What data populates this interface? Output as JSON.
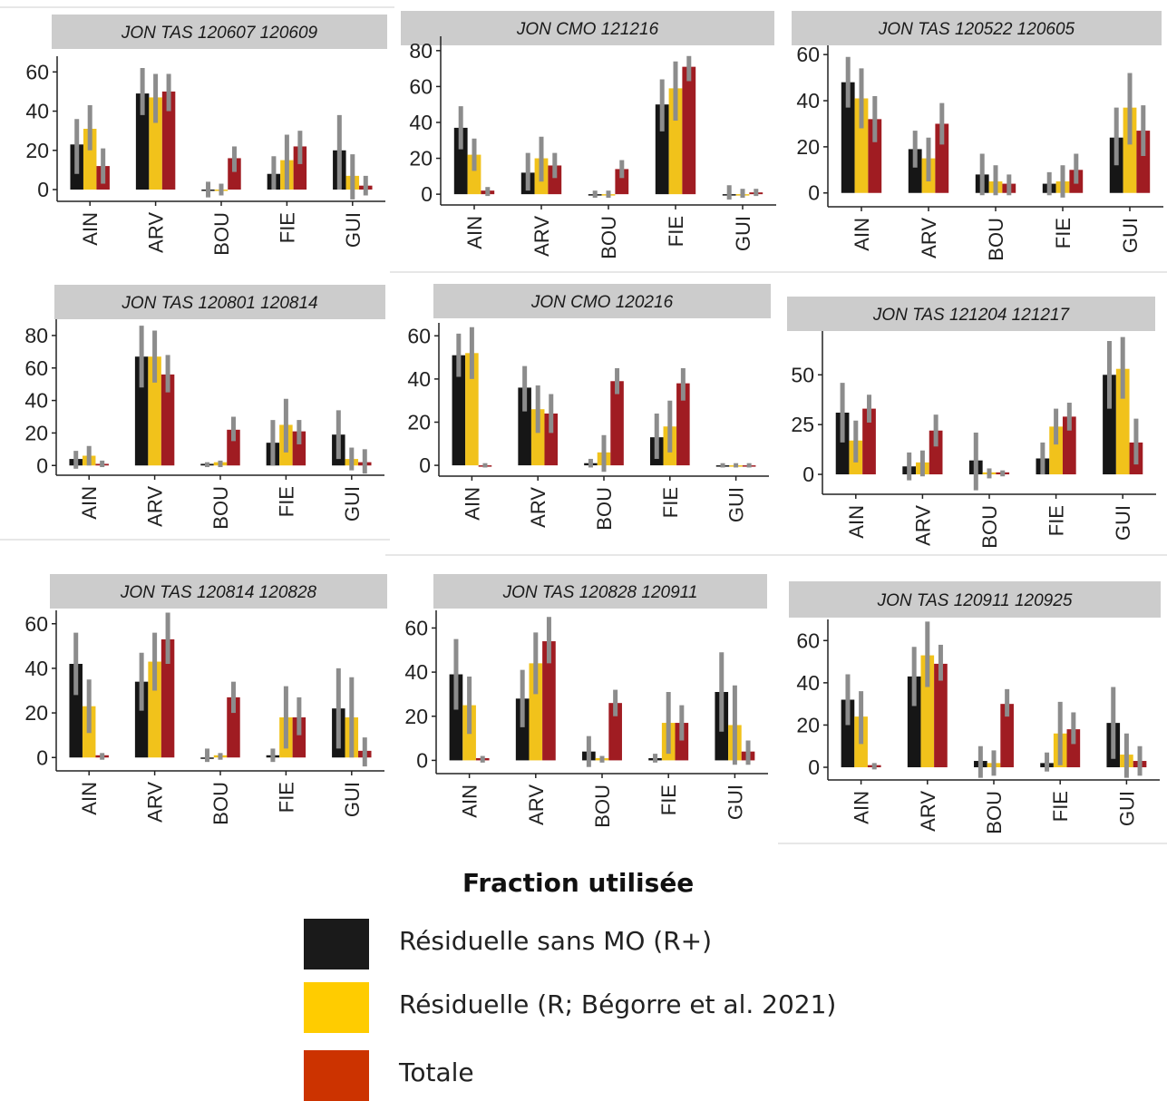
{
  "legend": {
    "title": "Fraction utilisée",
    "items": [
      {
        "label": "Résiduelle sans MO (R+)",
        "color": "#1a1a1a"
      },
      {
        "label": "Résiduelle (R; Bégorre et al. 2021)",
        "color": "#ffcc00"
      },
      {
        "label": "Totale",
        "color": "#cc3300"
      }
    ]
  },
  "chart_data": [
    {
      "type": "bar",
      "title": "JON TAS 120607 120609",
      "categories": [
        "AIN",
        "ARV",
        "BOU",
        "FIE",
        "GUI"
      ],
      "yticks": [
        0,
        20,
        40,
        60
      ],
      "ylim": [
        -6,
        68
      ],
      "series": [
        {
          "name": "Résiduelle sans MO (R+)",
          "values": [
            23,
            49,
            0,
            8,
            20
          ],
          "err_low": [
            8,
            38,
            -4,
            0,
            0
          ],
          "err_high": [
            36,
            62,
            4,
            17,
            38
          ]
        },
        {
          "name": "Résiduelle (R; Bégorre et al. 2021)",
          "values": [
            31,
            47,
            0,
            15,
            7
          ],
          "err_low": [
            20,
            34,
            -3,
            0,
            -5
          ],
          "err_high": [
            43,
            59,
            3,
            28,
            18
          ]
        },
        {
          "name": "Totale",
          "values": [
            12,
            50,
            16,
            22,
            2
          ],
          "err_low": [
            3,
            40,
            9,
            13,
            -3
          ],
          "err_high": [
            21,
            59,
            22,
            30,
            7
          ]
        }
      ]
    },
    {
      "type": "bar",
      "title": "JON CMO 121216",
      "categories": [
        "AIN",
        "ARV",
        "BOU",
        "FIE",
        "GUI"
      ],
      "yticks": [
        0,
        20,
        40,
        60,
        80
      ],
      "ylim": [
        -6,
        88
      ],
      "series": [
        {
          "name": "Résiduelle sans MO (R+)",
          "values": [
            37,
            12,
            0,
            50,
            0
          ],
          "err_low": [
            25,
            2,
            -2,
            35,
            -3
          ],
          "err_high": [
            49,
            23,
            2,
            64,
            5
          ]
        },
        {
          "name": "Résiduelle (R; Bégorre et al. 2021)",
          "values": [
            22,
            20,
            0,
            59,
            0
          ],
          "err_low": [
            13,
            7,
            -2,
            41,
            -2
          ],
          "err_high": [
            31,
            32,
            2,
            74,
            3
          ]
        },
        {
          "name": "Totale",
          "values": [
            2,
            16,
            14,
            71,
            1
          ],
          "err_low": [
            -1,
            9,
            9,
            63,
            -1
          ],
          "err_high": [
            4,
            23,
            19,
            77,
            3
          ]
        }
      ]
    },
    {
      "type": "bar",
      "title": "JON TAS 120522 120605",
      "categories": [
        "AIN",
        "ARV",
        "BOU",
        "FIE",
        "GUI"
      ],
      "yticks": [
        0,
        20,
        40,
        60
      ],
      "ylim": [
        -6,
        64
      ],
      "series": [
        {
          "name": "Résiduelle sans MO (R+)",
          "values": [
            48,
            19,
            8,
            4,
            24
          ],
          "err_low": [
            37,
            11,
            -1,
            -1,
            12
          ],
          "err_high": [
            59,
            27,
            17,
            9,
            37
          ]
        },
        {
          "name": "Résiduelle (R; Bégorre et al. 2021)",
          "values": [
            41,
            15,
            5,
            5,
            37
          ],
          "err_low": [
            28,
            5,
            -1,
            -2,
            21
          ],
          "err_high": [
            54,
            24,
            12,
            12,
            52
          ]
        },
        {
          "name": "Totale",
          "values": [
            32,
            30,
            4,
            10,
            27
          ],
          "err_low": [
            22,
            21,
            -1,
            4,
            16
          ],
          "err_high": [
            42,
            39,
            8,
            17,
            38
          ]
        }
      ]
    },
    {
      "type": "bar",
      "title": "JON TAS 120801 120814",
      "categories": [
        "AIN",
        "ARV",
        "BOU",
        "FIE",
        "GUI"
      ],
      "yticks": [
        0,
        20,
        40,
        60,
        80
      ],
      "ylim": [
        -6,
        90
      ],
      "series": [
        {
          "name": "Résiduelle sans MO (R+)",
          "values": [
            4,
            67,
            1,
            14,
            19
          ],
          "err_low": [
            -2,
            48,
            -1,
            0,
            4
          ],
          "err_high": [
            9,
            86,
            2,
            28,
            34
          ]
        },
        {
          "name": "Résiduelle (R; Bégorre et al. 2021)",
          "values": [
            6,
            67,
            2,
            25,
            4
          ],
          "err_low": [
            0,
            51,
            -1,
            8,
            -3
          ],
          "err_high": [
            12,
            83,
            3,
            41,
            11
          ]
        },
        {
          "name": "Totale",
          "values": [
            1,
            56,
            22,
            21,
            2
          ],
          "err_low": [
            -1,
            45,
            15,
            13,
            -5
          ],
          "err_high": [
            3,
            68,
            30,
            28,
            10
          ]
        }
      ]
    },
    {
      "type": "bar",
      "title": "JON CMO 120216",
      "categories": [
        "AIN",
        "ARV",
        "BOU",
        "FIE",
        "GUI"
      ],
      "yticks": [
        0,
        20,
        40,
        60
      ],
      "ylim": [
        -5,
        66
      ],
      "series": [
        {
          "name": "Résiduelle sans MO (R+)",
          "values": [
            51,
            36,
            1,
            13,
            0
          ],
          "err_low": [
            41,
            25,
            -1,
            3,
            -1
          ],
          "err_high": [
            61,
            46,
            3,
            24,
            1
          ]
        },
        {
          "name": "Résiduelle (R; Bégorre et al. 2021)",
          "values": [
            52,
            26,
            6,
            18,
            0
          ],
          "err_low": [
            40,
            15,
            -3,
            6,
            -1
          ],
          "err_high": [
            64,
            37,
            14,
            30,
            1
          ]
        },
        {
          "name": "Totale",
          "values": [
            0,
            24,
            39,
            38,
            0
          ],
          "err_low": [
            -1,
            15,
            33,
            30,
            -1
          ],
          "err_high": [
            1,
            33,
            45,
            45,
            1
          ]
        }
      ]
    },
    {
      "type": "bar",
      "title": "JON TAS 121204 121217",
      "categories": [
        "AIN",
        "ARV",
        "BOU",
        "FIE",
        "GUI"
      ],
      "yticks": [
        0,
        25,
        50
      ],
      "ylim": [
        -10,
        72
      ],
      "series": [
        {
          "name": "Résiduelle sans MO (R+)",
          "values": [
            31,
            4,
            7,
            8,
            50
          ],
          "err_low": [
            16,
            -3,
            -8,
            0,
            33
          ],
          "err_high": [
            46,
            11,
            21,
            16,
            67
          ]
        },
        {
          "name": "Résiduelle (R; Bégorre et al. 2021)",
          "values": [
            17,
            6,
            1,
            24,
            53
          ],
          "err_low": [
            6,
            -1,
            -2,
            15,
            38
          ],
          "err_high": [
            27,
            12,
            3,
            33,
            69
          ]
        },
        {
          "name": "Totale",
          "values": [
            33,
            22,
            1,
            29,
            16
          ],
          "err_low": [
            26,
            14,
            -1,
            22,
            5
          ],
          "err_high": [
            40,
            30,
            2,
            36,
            28
          ]
        }
      ]
    },
    {
      "type": "bar",
      "title": "JON TAS 120814 120828",
      "categories": [
        "AIN",
        "ARV",
        "BOU",
        "FIE",
        "GUI"
      ],
      "yticks": [
        0,
        20,
        40,
        60
      ],
      "ylim": [
        -6,
        66
      ],
      "series": [
        {
          "name": "Résiduelle sans MO (R+)",
          "values": [
            42,
            34,
            0,
            1,
            22
          ],
          "err_low": [
            28,
            21,
            -2,
            -2,
            4
          ],
          "err_high": [
            56,
            47,
            4,
            4,
            40
          ]
        },
        {
          "name": "Résiduelle (R; Bégorre et al. 2021)",
          "values": [
            23,
            43,
            1,
            18,
            18
          ],
          "err_low": [
            11,
            30,
            -1,
            4,
            0
          ],
          "err_high": [
            35,
            56,
            2,
            32,
            36
          ]
        },
        {
          "name": "Totale",
          "values": [
            1,
            53,
            27,
            18,
            3
          ],
          "err_low": [
            -1,
            42,
            20,
            10,
            -4
          ],
          "err_high": [
            2,
            65,
            34,
            27,
            9
          ]
        }
      ]
    },
    {
      "type": "bar",
      "title": "JON TAS 120828 120911",
      "categories": [
        "AIN",
        "ARV",
        "BOU",
        "FIE",
        "GUI"
      ],
      "yticks": [
        0,
        20,
        40,
        60
      ],
      "ylim": [
        -6,
        68
      ],
      "series": [
        {
          "name": "Résiduelle sans MO (R+)",
          "values": [
            39,
            28,
            4,
            1,
            31
          ],
          "err_low": [
            23,
            15,
            -3,
            -1,
            13
          ],
          "err_high": [
            55,
            41,
            11,
            3,
            49
          ]
        },
        {
          "name": "Résiduelle (R; Bégorre et al. 2021)",
          "values": [
            25,
            44,
            1,
            17,
            16
          ],
          "err_low": [
            12,
            30,
            -1,
            3,
            -2
          ],
          "err_high": [
            38,
            58,
            2,
            31,
            34
          ]
        },
        {
          "name": "Totale",
          "values": [
            1,
            54,
            26,
            17,
            4
          ],
          "err_low": [
            -1,
            44,
            20,
            9,
            -2
          ],
          "err_high": [
            2,
            65,
            32,
            25,
            9
          ]
        }
      ]
    },
    {
      "type": "bar",
      "title": "JON TAS 120911 120925",
      "categories": [
        "AIN",
        "ARV",
        "BOU",
        "FIE",
        "GUI"
      ],
      "yticks": [
        0,
        20,
        40,
        60
      ],
      "ylim": [
        -6,
        70
      ],
      "series": [
        {
          "name": "Résiduelle sans MO (R+)",
          "values": [
            32,
            43,
            3,
            2,
            21
          ],
          "err_low": [
            20,
            29,
            -5,
            -2,
            4
          ],
          "err_high": [
            44,
            57,
            10,
            7,
            38
          ]
        },
        {
          "name": "Résiduelle (R; Bégorre et al. 2021)",
          "values": [
            24,
            53,
            2,
            16,
            6
          ],
          "err_low": [
            11,
            38,
            -4,
            1,
            -5
          ],
          "err_high": [
            36,
            69,
            8,
            31,
            16
          ]
        },
        {
          "name": "Totale",
          "values": [
            1,
            49,
            30,
            18,
            3
          ],
          "err_low": [
            -1,
            41,
            24,
            11,
            -4
          ],
          "err_high": [
            2,
            58,
            37,
            26,
            10
          ]
        }
      ]
    }
  ]
}
